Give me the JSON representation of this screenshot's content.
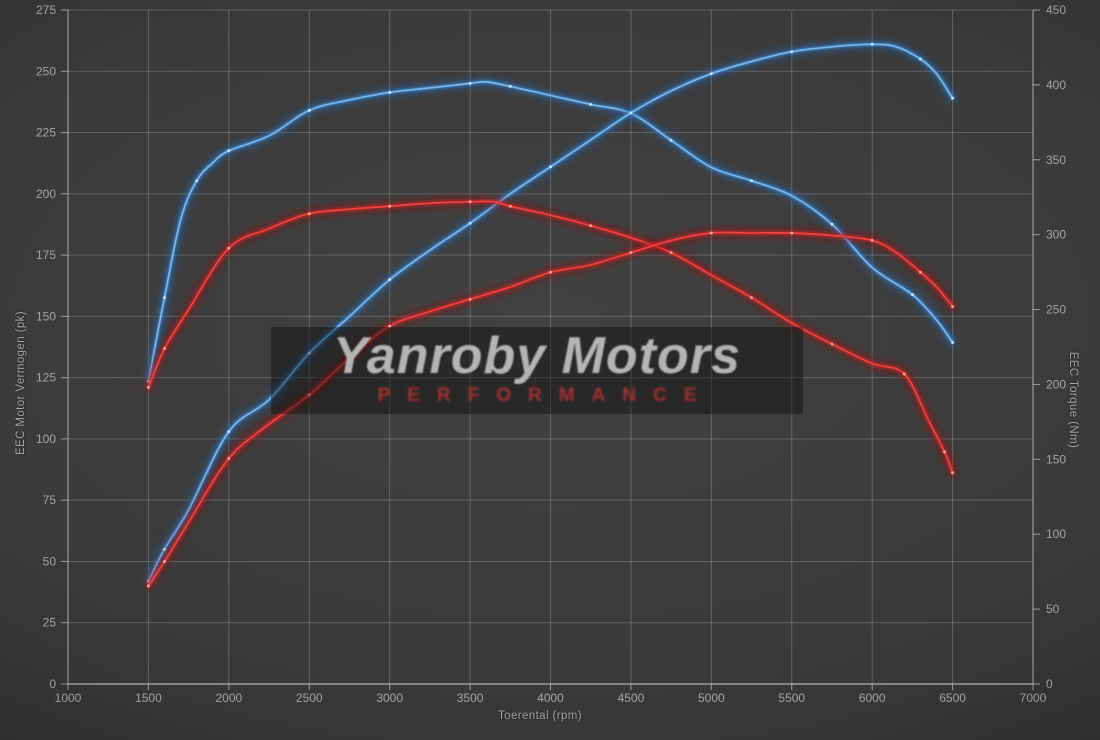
{
  "watermark": {
    "title": "Yanroby Motors",
    "subtitle": "PERFORMANCE"
  },
  "colors": {
    "background": "#3c3b3b",
    "grid": "#bdbdbd",
    "axis_text": "#a5a5a5",
    "blue_glow": "#1f66b0",
    "blue_core": "#3d86cc",
    "blue_bright": "#7fb9ec",
    "blue_marker": "#d8edff",
    "red_glow": "#9c1010",
    "red_core": "#c52020",
    "red_bright": "#f04545",
    "red_marker": "#ffb3aa"
  },
  "chart_data": {
    "type": "line",
    "title": "Yanroby Motors Performance dyno chart",
    "xlabel": "Toerental (rpm)",
    "ylabel_left": "EEC Motor Vermogen (pk)",
    "ylabel_right": "EEC Torque (Nm)",
    "x_range": [
      1000,
      7000
    ],
    "y_left_range": [
      0,
      275
    ],
    "y_right_range": [
      0,
      450
    ],
    "x_ticks": [
      1000,
      1500,
      2000,
      2500,
      3000,
      3500,
      4000,
      4500,
      5000,
      5500,
      6000,
      6500,
      7000
    ],
    "y_left_ticks": [
      0,
      25,
      50,
      75,
      100,
      125,
      150,
      175,
      200,
      225,
      250,
      275
    ],
    "y_right_ticks": [
      0,
      50,
      100,
      150,
      200,
      250,
      300,
      350,
      400,
      450
    ],
    "grid": true,
    "legend": "none",
    "series": [
      {
        "name": "blue-torque-nm",
        "axis": "right",
        "color": "blue",
        "points": [
          [
            1500,
            202
          ],
          [
            1600,
            258
          ],
          [
            1700,
            310
          ],
          [
            1800,
            336
          ],
          [
            1900,
            348
          ],
          [
            2000,
            356
          ],
          [
            2250,
            366
          ],
          [
            2500,
            383
          ],
          [
            2750,
            390
          ],
          [
            3000,
            395
          ],
          [
            3250,
            398
          ],
          [
            3500,
            401
          ],
          [
            3600,
            402
          ],
          [
            3750,
            399
          ],
          [
            4000,
            393
          ],
          [
            4250,
            387
          ],
          [
            4500,
            381
          ],
          [
            4750,
            363
          ],
          [
            5000,
            345
          ],
          [
            5250,
            336
          ],
          [
            5500,
            326
          ],
          [
            5750,
            307
          ],
          [
            6000,
            278
          ],
          [
            6250,
            260
          ],
          [
            6400,
            243
          ],
          [
            6500,
            228
          ]
        ]
      },
      {
        "name": "blue-vermogen-pk",
        "axis": "left",
        "color": "blue",
        "points": [
          [
            1500,
            42
          ],
          [
            1600,
            55
          ],
          [
            1750,
            71
          ],
          [
            2000,
            103
          ],
          [
            2250,
            116
          ],
          [
            2500,
            135
          ],
          [
            2750,
            150
          ],
          [
            3000,
            165
          ],
          [
            3250,
            177
          ],
          [
            3500,
            188
          ],
          [
            3750,
            200
          ],
          [
            4000,
            211
          ],
          [
            4250,
            222
          ],
          [
            4500,
            233
          ],
          [
            4750,
            242
          ],
          [
            5000,
            249
          ],
          [
            5250,
            254
          ],
          [
            5500,
            258
          ],
          [
            5750,
            260
          ],
          [
            6000,
            261
          ],
          [
            6150,
            260
          ],
          [
            6300,
            255
          ],
          [
            6400,
            249
          ],
          [
            6500,
            239
          ]
        ]
      },
      {
        "name": "red-torque-nm",
        "axis": "right",
        "color": "red",
        "points": [
          [
            1500,
            198
          ],
          [
            1600,
            224
          ],
          [
            1750,
            250
          ],
          [
            2000,
            291
          ],
          [
            2250,
            304
          ],
          [
            2500,
            314
          ],
          [
            2750,
            317
          ],
          [
            3000,
            319
          ],
          [
            3250,
            321
          ],
          [
            3500,
            322
          ],
          [
            3650,
            322
          ],
          [
            3750,
            319
          ],
          [
            4000,
            313
          ],
          [
            4250,
            306
          ],
          [
            4500,
            298
          ],
          [
            4750,
            288
          ],
          [
            5000,
            273
          ],
          [
            5250,
            258
          ],
          [
            5500,
            241
          ],
          [
            5750,
            227
          ],
          [
            6000,
            214
          ],
          [
            6200,
            207
          ],
          [
            6350,
            176
          ],
          [
            6450,
            155
          ],
          [
            6500,
            141
          ]
        ]
      },
      {
        "name": "red-vermogen-pk",
        "axis": "left",
        "color": "red",
        "points": [
          [
            1500,
            40
          ],
          [
            1600,
            50
          ],
          [
            1750,
            66
          ],
          [
            2000,
            92
          ],
          [
            2250,
            106
          ],
          [
            2500,
            118
          ],
          [
            2750,
            133
          ],
          [
            3000,
            146
          ],
          [
            3250,
            152
          ],
          [
            3500,
            157
          ],
          [
            3750,
            162
          ],
          [
            4000,
            168
          ],
          [
            4250,
            171
          ],
          [
            4500,
            176
          ],
          [
            4750,
            181
          ],
          [
            5000,
            184
          ],
          [
            5250,
            184
          ],
          [
            5500,
            184
          ],
          [
            5750,
            183
          ],
          [
            6000,
            181
          ],
          [
            6150,
            176
          ],
          [
            6300,
            168
          ],
          [
            6400,
            162
          ],
          [
            6500,
            154
          ]
        ]
      }
    ]
  }
}
